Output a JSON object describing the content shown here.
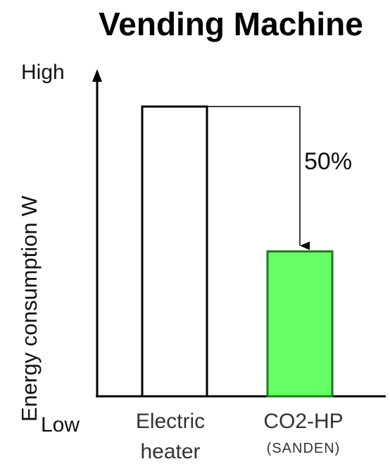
{
  "chart_data": {
    "type": "bar",
    "title": "Vending Machine",
    "ylabel": "Energy consumption W",
    "y_high_label": "High",
    "y_low_label": "Low",
    "categories": [
      {
        "line1": "Electric",
        "line2": "heater"
      },
      {
        "line1": "CO2-HP",
        "line2": "(SANDEN)"
      }
    ],
    "values": [
      100,
      50
    ],
    "ylim": [
      0,
      110
    ],
    "annotation": "50%",
    "colors": {
      "bar0_fill": "#ffffff",
      "bar1_fill": "#66ff66",
      "bar1_stroke": "#1e7a1e",
      "axis": "#000000"
    },
    "grid": false
  }
}
